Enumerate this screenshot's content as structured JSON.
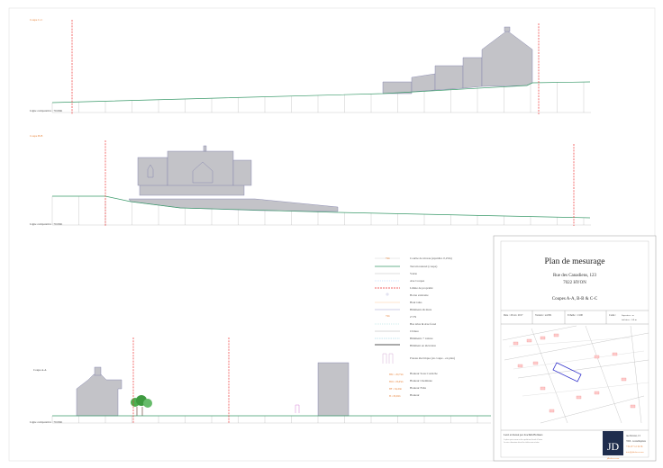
{
  "sections": {
    "cc": {
      "label": "Coupe C-C",
      "ref": "Ligne comparative : 70.00m"
    },
    "bb": {
      "label": "Coupe B-B",
      "ref": "Ligne comparative : 70.00m"
    },
    "aa": {
      "label": "Coupe A-A",
      "ref": "Ligne comparative : 70.00m"
    }
  },
  "legend": {
    "items": [
      {
        "sample": "contour",
        "label": "Courbe de niveau (équidist. 0,25m)",
        "sample_text": "73m"
      },
      {
        "sample": "terrain",
        "label": "Terrain naturel (coupe)"
      },
      {
        "sample": "voirie",
        "label": "Voirie"
      },
      {
        "sample": "axe",
        "label": "Axe Coupes"
      },
      {
        "sample": "limite",
        "label": "Limite de propriété"
      },
      {
        "sample": "borne",
        "label": "Borne existante"
      },
      {
        "sample": "haut-talus",
        "label": "Haut talus"
      },
      {
        "sample": "batiments",
        "label": "Bâtiments & murs"
      },
      {
        "sample": "ztn",
        "label": "Z TN",
        "sample_text": "73m"
      },
      {
        "sample": "bas-talus",
        "label": "Bas talus & Axe fossé"
      },
      {
        "sample": "cloture",
        "label": "Clôture"
      },
      {
        "sample": "toiture",
        "label": "Bâtiments + toiture"
      },
      {
        "sample": "elevation",
        "label": "Bâtiment en élévation"
      },
      {
        "sample": "poteau",
        "label": "Poteau électrique (en coupe - en plan)"
      }
    ],
    "heights": [
      {
        "sample": "HSC = 80,75m",
        "label": "Hauteur Sous Corniche"
      },
      {
        "sample": "HCh = 86,05m",
        "label": "Hauteur Cheminée"
      },
      {
        "sample": "HF = 84,45m",
        "label": "Hauteur Faîte"
      },
      {
        "sample": "H = 80,00m",
        "label": "Hauteur"
      }
    ]
  },
  "title_block": {
    "title": "Plan de mesurage",
    "address_line1": "Rue des Canadiens, 123",
    "address_line2": "7022  HYON",
    "subtitle": "Coupes A-A, B-B & C-C",
    "date": "Date : 29 avr. 2017",
    "version": "Version : rev001",
    "scale": "Echelle : 1/100",
    "cadastre_1": "Cadre :",
    "cadastre_2": "Superieur - m",
    "cadastre_3": "inférieur : 1-B m",
    "author": "Levé et dressé par Joachim Hollaers",
    "note1": "Ce plan ne peut en aucun cas être reproduit sans l'accord de l'auteur",
    "note2": "Les cotes et dimensions doivent être vérifiées avant exécution",
    "firm_logo": "JD",
    "firm_web": "jdholaers.com",
    "firm_street": "rue Dexter, 15",
    "firm_city": "7000  - Grandbaptiste",
    "firm_phone": "+32 477 12 34 56",
    "firm_email": "info@jdholaers.com"
  },
  "colors": {
    "axis": "#e33333",
    "terrain": "#3a9a6a",
    "building": "#c3c3c8",
    "annotation": "#e8833a",
    "logo_bg": "#1f2d4d"
  }
}
